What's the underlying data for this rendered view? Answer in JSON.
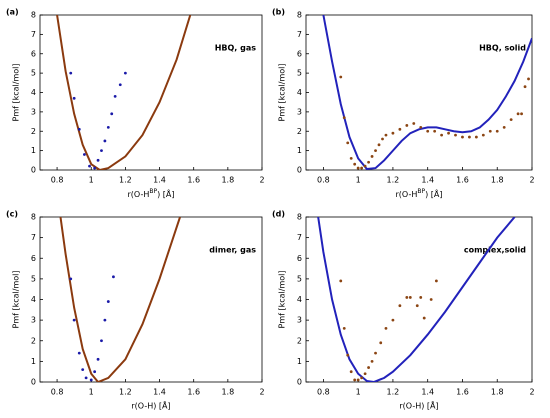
{
  "chart_data": [
    {
      "type": "line",
      "panel_label": "(a)",
      "annotation": "HBQ, gas",
      "ylabel": "Pmf [kcal/mol]",
      "xlabel": [
        "r(O-H",
        "BP",
        ") [Å]"
      ],
      "xlim": [
        0.7,
        2
      ],
      "ylim": [
        0,
        8
      ],
      "xticks": [
        0.8,
        1,
        1.2,
        1.4,
        1.6,
        1.8,
        2
      ],
      "yticks": [
        0,
        1,
        2,
        3,
        4,
        5,
        6,
        7,
        8
      ],
      "series": [
        {
          "type": "line",
          "color": "#8b3a0f",
          "x": [
            0.8,
            0.85,
            0.9,
            0.95,
            1.0,
            1.05,
            1.1,
            1.2,
            1.3,
            1.4,
            1.5,
            1.58
          ],
          "values": [
            8,
            5.1,
            2.9,
            1.3,
            0.3,
            0,
            0.1,
            0.7,
            1.8,
            3.5,
            5.7,
            8
          ]
        },
        {
          "type": "scatter",
          "color": "#1a1aa8",
          "x": [
            0.88,
            0.9,
            0.93,
            0.96,
            0.99,
            1.02,
            1.04,
            1.06,
            1.08,
            1.1,
            1.12,
            1.14,
            1.17,
            1.2
          ],
          "values": [
            5,
            3.7,
            2.1,
            0.8,
            0.2,
            0.1,
            0.5,
            1.0,
            1.5,
            2.2,
            2.9,
            3.8,
            4.4,
            5
          ]
        }
      ]
    },
    {
      "type": "line",
      "panel_label": "(b)",
      "annotation": "HBQ, solid",
      "ylabel": "Pmf [kcal/mol]",
      "xlabel": [
        "r(O-H",
        "BP",
        ") [Å]"
      ],
      "xlim": [
        0.7,
        2
      ],
      "ylim": [
        0,
        8
      ],
      "xticks": [
        0.8,
        1,
        1.2,
        1.4,
        1.6,
        1.8,
        2
      ],
      "yticks": [
        0,
        1,
        2,
        3,
        4,
        5,
        6,
        7,
        8
      ],
      "series": [
        {
          "type": "line",
          "color": "#2222bb",
          "x": [
            0.8,
            0.85,
            0.9,
            0.95,
            1.0,
            1.05,
            1.1,
            1.15,
            1.2,
            1.25,
            1.3,
            1.35,
            1.4,
            1.45,
            1.5,
            1.55,
            1.6,
            1.65,
            1.7,
            1.75,
            1.8,
            1.85,
            1.9,
            1.95,
            2.0
          ],
          "values": [
            8,
            5.6,
            3.4,
            1.7,
            0.6,
            0.05,
            0.1,
            0.5,
            1.0,
            1.5,
            1.9,
            2.1,
            2.2,
            2.2,
            2.1,
            2.0,
            1.95,
            2.0,
            2.2,
            2.6,
            3.1,
            3.8,
            4.6,
            5.6,
            6.8
          ]
        },
        {
          "type": "scatter",
          "color": "#8b4513",
          "x": [
            0.9,
            0.92,
            0.94,
            0.96,
            0.98,
            1.0,
            1.02,
            1.04,
            1.06,
            1.08,
            1.1,
            1.12,
            1.14,
            1.16,
            1.2,
            1.24,
            1.28,
            1.32,
            1.36,
            1.4,
            1.44,
            1.48,
            1.52,
            1.56,
            1.6,
            1.64,
            1.68,
            1.72,
            1.76,
            1.8,
            1.84,
            1.88,
            1.92,
            1.94,
            1.96,
            1.98
          ],
          "values": [
            4.8,
            2.7,
            1.4,
            0.6,
            0.3,
            0.1,
            0.1,
            0.2,
            0.4,
            0.7,
            1.0,
            1.3,
            1.6,
            1.8,
            1.9,
            2.1,
            2.3,
            2.4,
            2.2,
            2.0,
            2.0,
            1.8,
            1.9,
            1.8,
            1.7,
            1.7,
            1.7,
            1.8,
            2.0,
            2.0,
            2.2,
            2.6,
            2.9,
            2.9,
            4.3,
            4.7
          ]
        }
      ]
    },
    {
      "type": "line",
      "panel_label": "(c)",
      "annotation": "dimer, gas",
      "ylabel": "Pmf [kcal/mol]",
      "xlabel": "r(O-H) [Å]",
      "xlim": [
        0.7,
        2
      ],
      "ylim": [
        0,
        8
      ],
      "xticks": [
        0.8,
        1,
        1.2,
        1.4,
        1.6,
        1.8,
        2
      ],
      "yticks": [
        0,
        1,
        2,
        3,
        4,
        5,
        6,
        7,
        8
      ],
      "series": [
        {
          "type": "line",
          "color": "#8b3a0f",
          "x": [
            0.82,
            0.85,
            0.9,
            0.95,
            1.0,
            1.04,
            1.1,
            1.2,
            1.3,
            1.4,
            1.52
          ],
          "values": [
            8,
            6.2,
            3.6,
            1.6,
            0.4,
            0,
            0.2,
            1.1,
            2.8,
            5.0,
            8
          ]
        },
        {
          "type": "scatter",
          "color": "#1a1aa8",
          "x": [
            0.88,
            0.9,
            0.93,
            0.95,
            0.97,
            1.0,
            1.02,
            1.04,
            1.06,
            1.08,
            1.1,
            1.13
          ],
          "values": [
            5,
            3,
            1.4,
            0.6,
            0.2,
            0.1,
            0.5,
            1.1,
            2.0,
            3.0,
            3.9,
            5.1
          ]
        }
      ]
    },
    {
      "type": "line",
      "panel_label": "(d)",
      "annotation": "complex,solid",
      "ylabel": "Pmf [kcal/mol]",
      "xlabel": "r(O-H) [Å]",
      "xlim": [
        0.7,
        2
      ],
      "ylim": [
        0,
        8
      ],
      "xticks": [
        0.8,
        1,
        1.2,
        1.4,
        1.6,
        1.8,
        2
      ],
      "yticks": [
        0,
        1,
        2,
        3,
        4,
        5,
        6,
        7,
        8
      ],
      "series": [
        {
          "type": "line",
          "color": "#2222bb",
          "x": [
            0.77,
            0.8,
            0.85,
            0.9,
            0.95,
            1.0,
            1.05,
            1.09,
            1.15,
            1.2,
            1.3,
            1.4,
            1.5,
            1.6,
            1.7,
            1.8,
            1.9
          ],
          "values": [
            8,
            6.3,
            4.0,
            2.3,
            1.1,
            0.4,
            0.05,
            0,
            0.2,
            0.5,
            1.3,
            2.3,
            3.4,
            4.6,
            5.8,
            7.0,
            8
          ]
        },
        {
          "type": "scatter",
          "color": "#8b4513",
          "x": [
            0.9,
            0.92,
            0.94,
            0.96,
            0.98,
            1.0,
            1.02,
            1.04,
            1.06,
            1.08,
            1.1,
            1.13,
            1.16,
            1.2,
            1.24,
            1.28,
            1.3,
            1.34,
            1.36,
            1.38,
            1.42,
            1.45
          ],
          "values": [
            4.9,
            2.6,
            1.3,
            0.5,
            0.1,
            0.1,
            0.2,
            0.4,
            0.7,
            1.0,
            1.4,
            1.9,
            2.6,
            3.0,
            3.7,
            4.1,
            4.1,
            3.7,
            4.1,
            3.1,
            4.0,
            4.9
          ]
        }
      ]
    }
  ]
}
